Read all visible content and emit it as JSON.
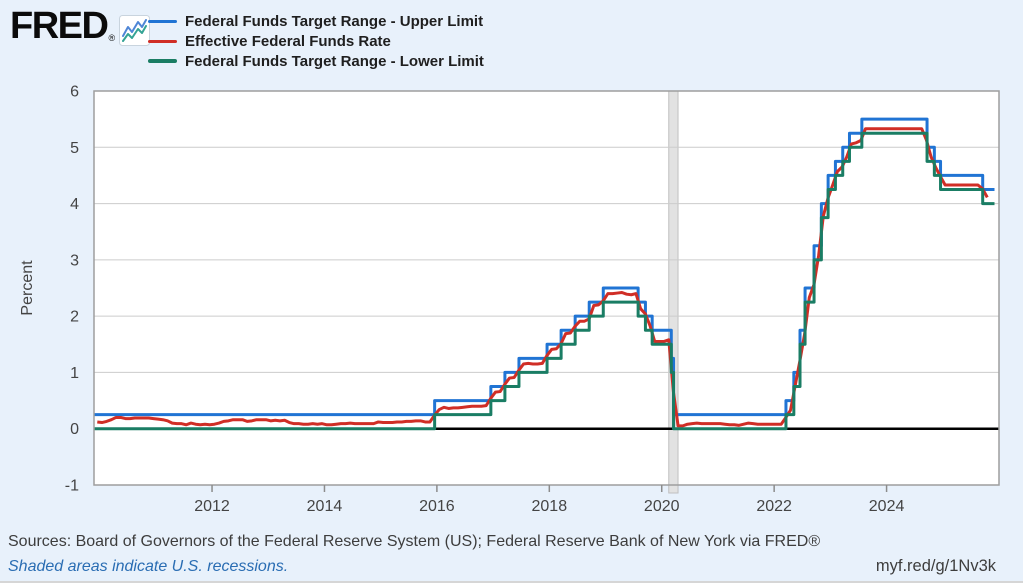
{
  "header": {
    "logo_text": "FRED",
    "registered_mark": "®"
  },
  "footer": {
    "sources": "Sources: Board of Governors of the Federal Reserve System (US); Federal Reserve Bank of New York via FRED®",
    "recession_note": "Shaded areas indicate U.S. recessions.",
    "permalink": "myf.red/g/1Nv3k"
  },
  "colors": {
    "background": "#e8f1fb",
    "link_blue": "#2a6db3",
    "recession_band_fill": "#e2e2e2",
    "recession_band_edge": "#c0c0c0",
    "gridline": "#cccccc",
    "zero_line": "#000000",
    "plot_border": "#9e9e9e",
    "tick_text": "#444444"
  },
  "chart_data": {
    "type": "line",
    "title": "",
    "xlabel": "",
    "ylabel": "Percent",
    "xlim": [
      2009.9,
      2026.0
    ],
    "ylim": [
      -1,
      6
    ],
    "yticks": [
      -1,
      0,
      1,
      2,
      3,
      4,
      5,
      6
    ],
    "xticks": [
      2012,
      2014,
      2016,
      2018,
      2020,
      2022,
      2024
    ],
    "grid": "horizontal",
    "legend_position": "top-left",
    "recession_bands": [
      {
        "start": 2020.125,
        "end": 2020.29
      }
    ],
    "series": [
      {
        "name": "Federal Funds Target Range - Upper Limit",
        "color": "#2074d4",
        "style": "step",
        "points": [
          [
            2009.9,
            0.25
          ],
          [
            2015.96,
            0.5
          ],
          [
            2016.96,
            0.75
          ],
          [
            2017.21,
            1.0
          ],
          [
            2017.46,
            1.25
          ],
          [
            2017.96,
            1.5
          ],
          [
            2018.21,
            1.75
          ],
          [
            2018.46,
            2.0
          ],
          [
            2018.71,
            2.25
          ],
          [
            2018.96,
            2.5
          ],
          [
            2019.58,
            2.25
          ],
          [
            2019.71,
            2.0
          ],
          [
            2019.83,
            1.75
          ],
          [
            2020.17,
            1.25
          ],
          [
            2020.21,
            0.25
          ],
          [
            2022.21,
            0.5
          ],
          [
            2022.35,
            1.0
          ],
          [
            2022.46,
            1.75
          ],
          [
            2022.55,
            2.5
          ],
          [
            2022.71,
            3.25
          ],
          [
            2022.84,
            4.0
          ],
          [
            2022.96,
            4.5
          ],
          [
            2023.09,
            4.75
          ],
          [
            2023.22,
            5.0
          ],
          [
            2023.34,
            5.25
          ],
          [
            2023.56,
            5.5
          ],
          [
            2024.72,
            5.0
          ],
          [
            2024.85,
            4.75
          ],
          [
            2024.96,
            4.5
          ],
          [
            2025.71,
            4.25
          ],
          [
            2025.92,
            4.25
          ]
        ]
      },
      {
        "name": "Effective Federal Funds Rate",
        "color": "#d02e26",
        "style": "line",
        "monthly": {
          "start_year": 2009,
          "start_month": 12,
          "values": [
            0.12,
            0.11,
            0.13,
            0.16,
            0.2,
            0.2,
            0.18,
            0.18,
            0.19,
            0.19,
            0.19,
            0.19,
            0.18,
            0.17,
            0.16,
            0.14,
            0.1,
            0.09,
            0.09,
            0.07,
            0.1,
            0.08,
            0.07,
            0.08,
            0.07,
            0.08,
            0.1,
            0.13,
            0.14,
            0.16,
            0.16,
            0.16,
            0.13,
            0.14,
            0.16,
            0.16,
            0.16,
            0.14,
            0.15,
            0.14,
            0.15,
            0.11,
            0.09,
            0.09,
            0.08,
            0.08,
            0.09,
            0.08,
            0.09,
            0.07,
            0.07,
            0.08,
            0.09,
            0.09,
            0.1,
            0.09,
            0.09,
            0.09,
            0.09,
            0.09,
            0.12,
            0.11,
            0.11,
            0.11,
            0.12,
            0.12,
            0.13,
            0.13,
            0.14,
            0.14,
            0.12,
            0.12,
            0.24,
            0.34,
            0.38,
            0.36,
            0.37,
            0.37,
            0.38,
            0.39,
            0.4,
            0.4,
            0.4,
            0.41,
            0.54,
            0.65,
            0.66,
            0.79,
            0.9,
            0.91,
            1.04,
            1.15,
            1.16,
            1.15,
            1.15,
            1.16,
            1.3,
            1.41,
            1.42,
            1.51,
            1.69,
            1.7,
            1.82,
            1.91,
            1.91,
            1.95,
            2.19,
            2.2,
            2.27,
            2.4,
            2.4,
            2.41,
            2.42,
            2.39,
            2.38,
            2.4,
            2.13,
            2.04,
            1.83,
            1.55,
            1.55,
            1.55,
            1.58,
            0.65,
            0.05,
            0.05,
            0.08,
            0.09,
            0.1,
            0.09,
            0.09,
            0.09,
            0.09,
            0.09,
            0.08,
            0.07,
            0.07,
            0.06,
            0.08,
            0.1,
            0.09,
            0.08,
            0.08,
            0.08,
            0.08,
            0.08,
            0.08,
            0.2,
            0.33,
            0.77,
            1.21,
            1.68,
            2.33,
            2.56,
            3.08,
            3.78,
            4.1,
            4.33,
            4.57,
            4.65,
            4.83,
            5.06,
            5.08,
            5.12,
            5.33,
            5.33,
            5.33,
            5.33,
            5.33,
            5.33,
            5.33,
            5.33,
            5.33,
            5.33,
            5.33,
            5.33,
            5.33,
            5.13,
            4.83,
            4.64,
            4.48,
            4.33,
            4.33,
            4.33,
            4.33,
            4.33,
            4.33,
            4.33,
            4.33,
            4.26,
            4.11
          ]
        }
      },
      {
        "name": "Federal Funds Target Range - Lower Limit",
        "color": "#1a7d64",
        "style": "step",
        "points": [
          [
            2009.9,
            0.0
          ],
          [
            2015.96,
            0.25
          ],
          [
            2016.96,
            0.5
          ],
          [
            2017.21,
            0.75
          ],
          [
            2017.46,
            1.0
          ],
          [
            2017.96,
            1.25
          ],
          [
            2018.21,
            1.5
          ],
          [
            2018.46,
            1.75
          ],
          [
            2018.71,
            2.0
          ],
          [
            2018.96,
            2.25
          ],
          [
            2019.58,
            2.0
          ],
          [
            2019.71,
            1.75
          ],
          [
            2019.83,
            1.5
          ],
          [
            2020.17,
            1.0
          ],
          [
            2020.21,
            0.0
          ],
          [
            2022.21,
            0.25
          ],
          [
            2022.35,
            0.75
          ],
          [
            2022.46,
            1.5
          ],
          [
            2022.55,
            2.25
          ],
          [
            2022.71,
            3.0
          ],
          [
            2022.84,
            3.75
          ],
          [
            2022.96,
            4.25
          ],
          [
            2023.09,
            4.5
          ],
          [
            2023.22,
            4.75
          ],
          [
            2023.34,
            5.0
          ],
          [
            2023.56,
            5.25
          ],
          [
            2024.72,
            4.75
          ],
          [
            2024.85,
            4.5
          ],
          [
            2024.96,
            4.25
          ],
          [
            2025.71,
            4.0
          ],
          [
            2025.92,
            4.0
          ]
        ]
      }
    ]
  }
}
